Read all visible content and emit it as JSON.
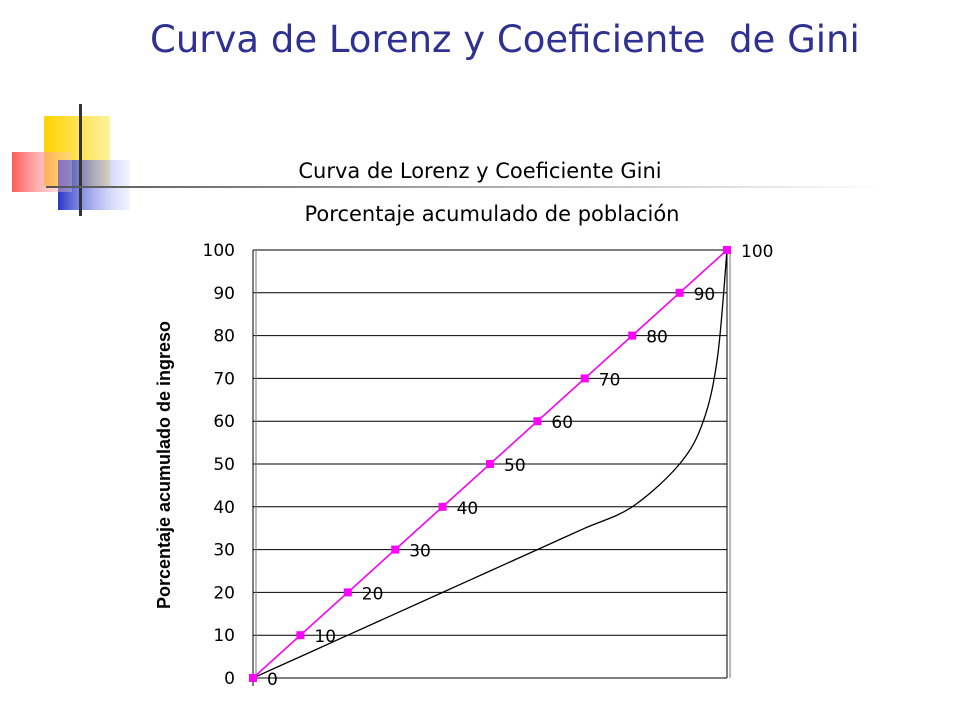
{
  "slide": {
    "title": "Curva de Lorenz y Coeficiente  de Gini",
    "title_color": "#2e3192"
  },
  "chart_data": {
    "type": "line",
    "title": "Curva de Lorenz y Coeficiente Gini",
    "subtitle": "Porcentaje acumulado de población",
    "xlabel": "",
    "ylabel": "Porcentaje acumulado de ingreso",
    "xlim": [
      0,
      100
    ],
    "ylim": [
      0,
      100
    ],
    "y_ticks": [
      0,
      10,
      20,
      30,
      40,
      50,
      60,
      70,
      80,
      90,
      100
    ],
    "grid": true,
    "series": [
      {
        "x": [
          0,
          10,
          20,
          30,
          40,
          50,
          60,
          70,
          80,
          90,
          100
        ],
        "values": [
          0,
          10,
          20,
          30,
          40,
          50,
          60,
          70,
          80,
          90,
          100
        ],
        "labels": [
          "0",
          "10",
          "20",
          "30",
          "40",
          "50",
          "60",
          "70",
          "80",
          "90",
          "100"
        ],
        "color": "#ff00ff",
        "marker": "square"
      },
      {
        "x": [
          0,
          100
        ],
        "values": [
          0,
          100
        ],
        "color": "#000000"
      },
      {
        "x": [
          0,
          10,
          20,
          30,
          40,
          50,
          60,
          70,
          80,
          90,
          95,
          98,
          100
        ],
        "values": [
          0,
          5,
          10,
          15,
          20,
          25,
          30,
          35,
          40,
          50,
          60,
          75,
          100
        ],
        "color": "#000000"
      }
    ]
  }
}
